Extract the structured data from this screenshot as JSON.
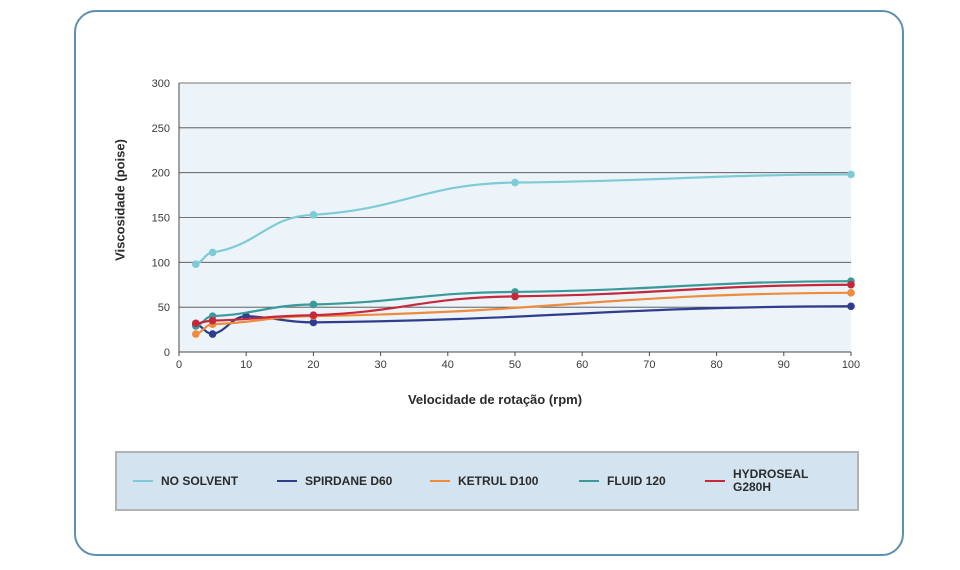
{
  "chart_data": {
    "type": "line",
    "title": "",
    "xlabel": "Velocidade de rotação (rpm)",
    "ylabel": "Viscosidade (poise)",
    "xlim": [
      0,
      100
    ],
    "ylim": [
      0,
      300
    ],
    "xticks": [
      0,
      10,
      20,
      30,
      40,
      50,
      60,
      70,
      80,
      90,
      100
    ],
    "yticks": [
      0,
      50,
      100,
      150,
      200,
      250,
      300
    ],
    "grid": "horizontal",
    "legend_position": "bottom",
    "series": [
      {
        "name": "NO SOLVENT",
        "color": "#7ecbd8",
        "x": [
          2.5,
          5,
          20,
          50,
          100
        ],
        "y": [
          98,
          111,
          153,
          189,
          198
        ]
      },
      {
        "name": "SPIRDANE D60",
        "color": "#2e3d8e",
        "x": [
          2.5,
          5,
          10,
          20,
          100
        ],
        "y": [
          31,
          20,
          40,
          33,
          51
        ]
      },
      {
        "name": "KETRUL D100",
        "color": "#ef8b3d",
        "x": [
          2.5,
          5,
          20,
          100
        ],
        "y": [
          20,
          31,
          40,
          66
        ]
      },
      {
        "name": "FLUID 120",
        "color": "#3a9a9a",
        "x": [
          2.5,
          5,
          20,
          50,
          100
        ],
        "y": [
          29,
          40,
          53,
          67,
          79
        ]
      },
      {
        "name": "HYDROSEAL G280H",
        "color": "#c4283a",
        "x": [
          2.5,
          5,
          20,
          50,
          100
        ],
        "y": [
          32,
          35,
          41,
          62,
          75
        ]
      }
    ]
  },
  "legend": {
    "items": [
      {
        "label": "NO SOLVENT",
        "color": "#7ecbd8"
      },
      {
        "label": "SPIRDANE D60",
        "color": "#2e3d8e"
      },
      {
        "label": "KETRUL D100",
        "color": "#ef8b3d"
      },
      {
        "label": "FLUID 120",
        "color": "#3a9a9a"
      },
      {
        "label": "HYDROSEAL G280H",
        "color": "#c4283a"
      }
    ]
  }
}
